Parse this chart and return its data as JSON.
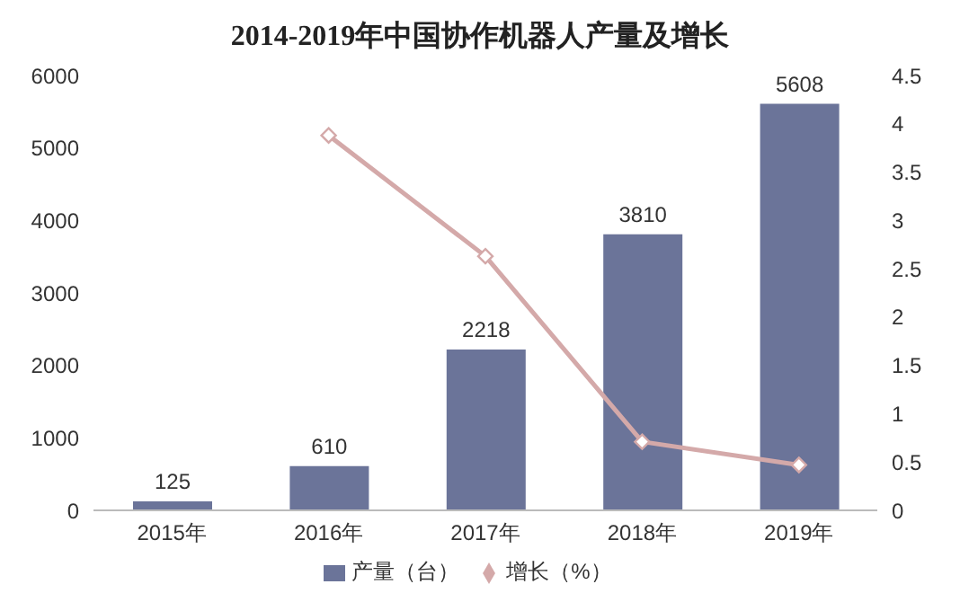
{
  "chart_data": {
    "type": "bar",
    "title": "2014-2019年中国协作机器人产量及增长",
    "categories": [
      "2015年",
      "2016年",
      "2017年",
      "2018年",
      "2019年"
    ],
    "series": [
      {
        "name": "产量（台）",
        "color": "#6b7499",
        "values": [
          125,
          610,
          2218,
          3810,
          5608
        ],
        "value_labels": [
          "125",
          "610",
          "2218",
          "3810",
          "5608"
        ]
      },
      {
        "name": "增长（%）",
        "type": "line",
        "axis": "y2",
        "color": "#d4a9a9",
        "values": [
          null,
          3.88,
          2.63,
          0.71,
          0.47
        ]
      }
    ],
    "ylim": [
      0,
      6000
    ],
    "yticks": [
      0,
      1000,
      2000,
      3000,
      4000,
      5000,
      6000
    ],
    "y2lim": [
      0,
      4.5
    ],
    "y2ticks": [
      0,
      0.5,
      1,
      1.5,
      2,
      2.5,
      3,
      3.5,
      4,
      4.5
    ],
    "grid": false,
    "legend": "bottom",
    "marker": "diamond",
    "line_style": "solid"
  }
}
